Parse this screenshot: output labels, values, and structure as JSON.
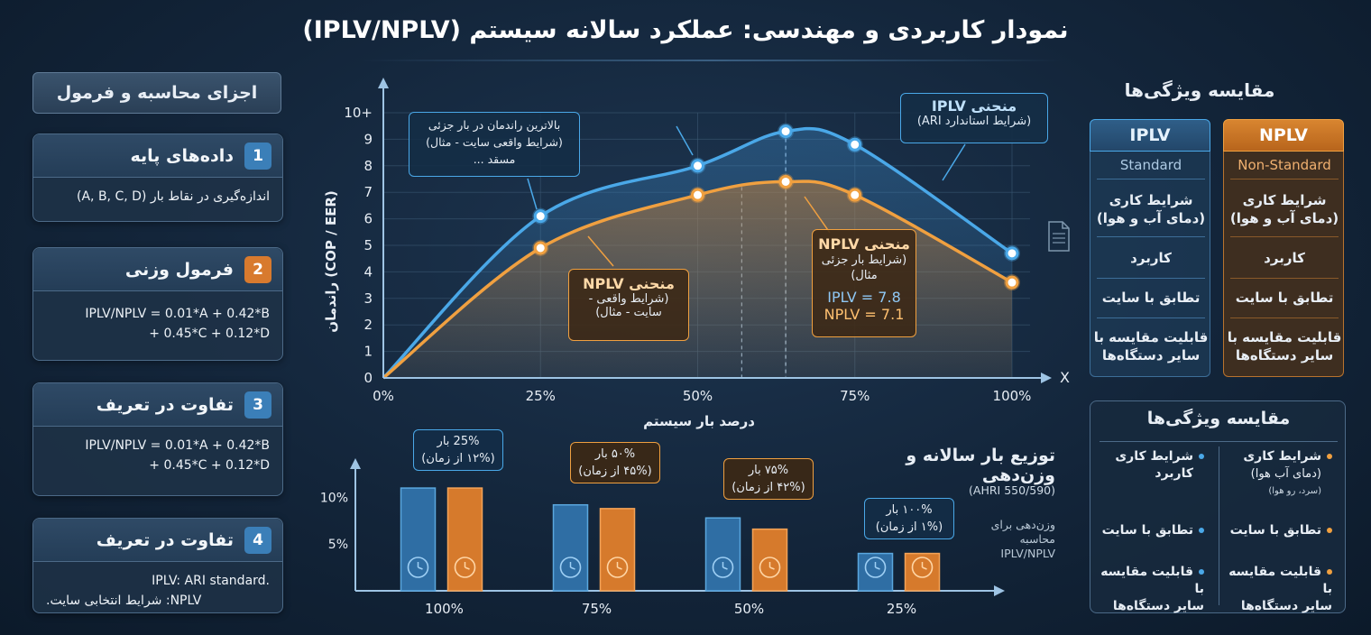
{
  "title": "نمودار کاربردی و مهندسی: عملکرد سالانه سیستم (IPLV/NPLV)",
  "left": {
    "header": "اجزای محاسبه و فرمول",
    "panels": [
      {
        "num": "1",
        "title": "داده‌های پایه",
        "body1": "اندازه‌گیری در نقاط بار (A, B, C, D)",
        "body2": ""
      },
      {
        "num": "2",
        "title": "فرمول وزنی",
        "body1": "IPLV/NPLV = 0.01*A + 0.42*B",
        "body2": "+ 0.45*C + 0.12*D"
      },
      {
        "num": "3",
        "title": "تفاوت در تعریف",
        "body1": "IPLV/NPLV = 0.01*A + 0.42*B",
        "body2": "+ 0.45*C + 0.12*D"
      },
      {
        "num": "4",
        "title": "تفاوت در تعریف",
        "body1": "IPLV: ARI standard.",
        "body2": "NPLV: شرایط انتخابی سایت."
      }
    ]
  },
  "main_chart": {
    "ylabel": "راندمان (COP / EER)",
    "xlabel": "درصد بار سیستم",
    "x_axis_letter": "X",
    "yticks": [
      "0",
      "1",
      "2",
      "3",
      "4",
      "5",
      "6",
      "7",
      "8",
      "9",
      "10+"
    ],
    "xticks": [
      "0%",
      "25%",
      "50%",
      "75%",
      "100%"
    ],
    "callouts": {
      "peak": [
        "بالاترین راندمان در بار جزئی",
        "(شرایط واقعی سایت - مثال)",
        "مسقد ..."
      ],
      "iplv_curve": [
        "منحنی IPLV",
        "(شرایط استاندارد ARI)"
      ],
      "nplv_curve_left": [
        "منحنی NPLV",
        "(شرایط واقعی -",
        "سایت - مثال)"
      ],
      "nplv_curve_right": [
        "منحنی NPLV",
        "(شرایط بار جزئی",
        "مثال)"
      ],
      "iplv_value": "IPLV = 7.8",
      "nplv_value": "NPLV = 7.1"
    }
  },
  "chart_data": [
    {
      "type": "line",
      "x": [
        0,
        25,
        50,
        64,
        75,
        100
      ],
      "series": [
        {
          "name": "منحنی IPLV",
          "values": [
            0,
            6.1,
            8.0,
            9.3,
            8.8,
            4.7
          ]
        },
        {
          "name": "منحنی NPLV",
          "values": [
            0,
            4.9,
            6.9,
            7.4,
            6.9,
            3.6
          ]
        }
      ],
      "xlabel": "درصد بار سیستم",
      "ylabel": "راندمان (COP / EER)",
      "ylim": [
        0,
        10
      ],
      "xlim": [
        0,
        100
      ],
      "grid": true,
      "colors": {
        "iplv": "#4aa8e8",
        "nplv": "#f0a040"
      }
    },
    {
      "type": "bar",
      "title": "توزیع بار سالانه و وزن‌دهی",
      "subtitle": "(AHRI 550/590)",
      "categories": [
        "100%",
        "75%",
        "50%",
        "25%"
      ],
      "yticks": [
        "10%",
        "5%"
      ],
      "series": [
        {
          "values": [
            11.0,
            9.2,
            7.8,
            4.0
          ]
        },
        {
          "values": [
            11.0,
            8.8,
            6.6,
            4.0
          ]
        }
      ],
      "callouts": [
        [
          "25% بار",
          "(۱۲% از زمان)"
        ],
        [
          "۵۰% بار",
          "(۴۵% از زمان)"
        ],
        [
          "۷۵% بار",
          "(۴۲% از زمان)"
        ],
        [
          "۱۰۰% بار",
          "(۱% از زمان)"
        ]
      ],
      "note": [
        "وزن‌دهی برای",
        "محاسبه",
        "IPLV/NPLV"
      ],
      "ylim": [
        0,
        14
      ]
    }
  ],
  "right": {
    "title": "مقایسه ویژگی‌ها",
    "iplv": {
      "head": "IPLV",
      "sub": "Standard",
      "rows": [
        [
          "شرایط کاری",
          "(دمای آب و هوا)"
        ],
        [
          "کاربرد",
          ""
        ],
        [
          "تطابق با سایت",
          ""
        ],
        [
          "قابلیت مقایسه با",
          "سایر دستگاه‌ها"
        ]
      ]
    },
    "nplv": {
      "head": "NPLV",
      "sub": "Non-Standard",
      "rows": [
        [
          "شرایط کاری",
          "(دمای آب و هوا)"
        ],
        [
          "کاربرد",
          ""
        ],
        [
          "تطابق با سایت",
          ""
        ],
        [
          "قابلیت مقایسه با",
          "سایر دستگاه‌ها"
        ]
      ]
    },
    "box2": {
      "title": "مقایسه ویژگی‌ها",
      "right_items": [
        [
          "شرایط کاری",
          "(دمای آب هوا)",
          "(سرد، رو هوا)"
        ],
        [
          "تطابق با سایت",
          "",
          ""
        ],
        [
          "قابلیت مقایسه با",
          "سایر دستگاه‌ها",
          ""
        ]
      ],
      "left_items": [
        [
          "شرایط کاری",
          "کاربرد",
          ""
        ],
        [
          "تطابق با سایت",
          "",
          ""
        ],
        [
          "قابلیت مقایسه با",
          "سایر دستگاه‌ها",
          ""
        ]
      ]
    }
  }
}
